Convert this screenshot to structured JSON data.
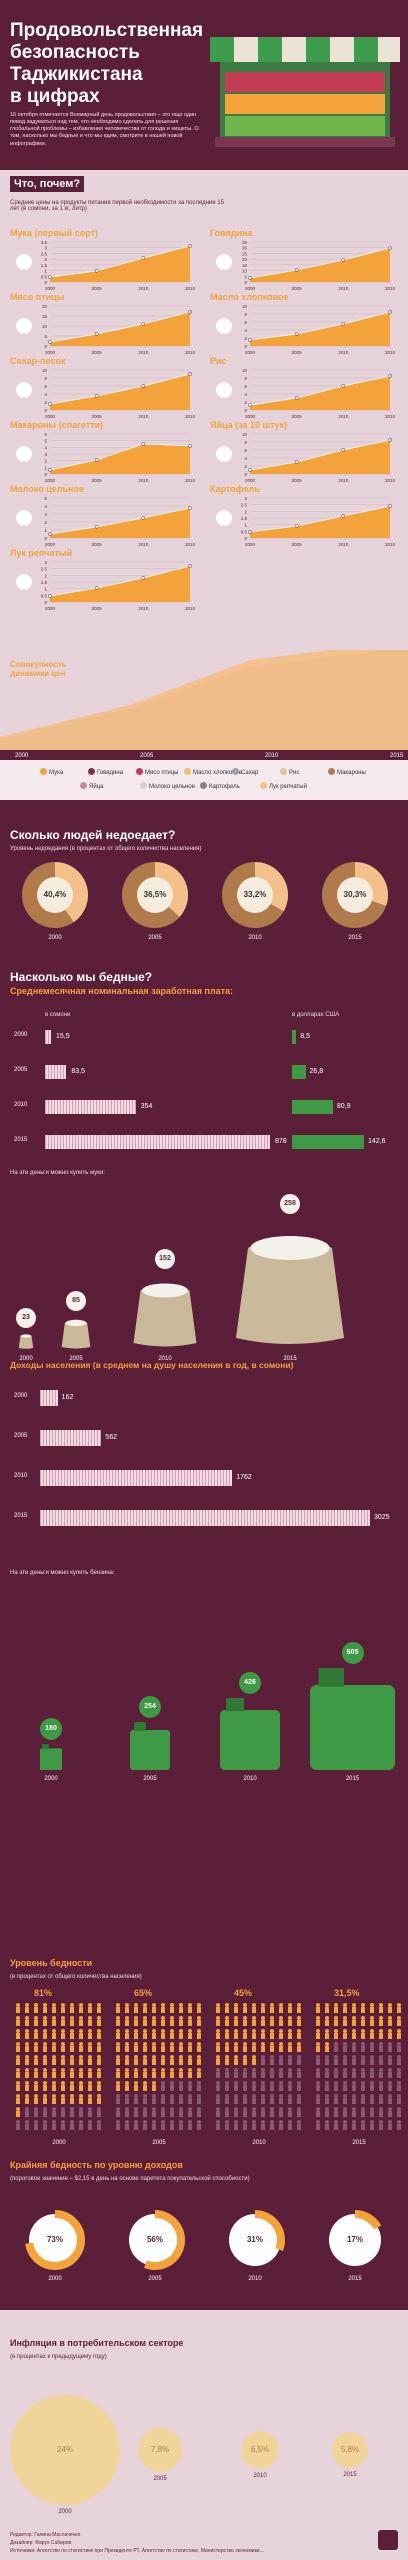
{
  "header": {
    "title_line1": "Продовольственная",
    "title_line2": "безопасность",
    "title_line3": "Таджикистана",
    "title_line4": "в цифрах",
    "intro": "16 октября отмечается Всемирный день продовольствия – это еще один повод задуматься над тем, что необходимо сделать для решения глобальной проблемы – избавления человечества от голода и нищеты. О том, насколько мы бедные и что мы едим, смотрите в нашей новой инфографике."
  },
  "prices": {
    "heading": "Что, почем?",
    "subheading": "Средние цены на продукты питания первой необходимости за последние 15 лет (в сомони, за 1 кг, литр)",
    "years": [
      "2000",
      "2005",
      "2010",
      "2015"
    ],
    "items": [
      {
        "name": "Мука (первый сорт)",
        "ticks": [
          "3.5",
          "3",
          "2.5",
          "2",
          "1.5",
          "1",
          "0.5",
          "0"
        ]
      },
      {
        "name": "Говядина",
        "ticks": [
          "35",
          "30",
          "25",
          "20",
          "15",
          "10",
          "5",
          "0"
        ]
      },
      {
        "name": "Мясо птицы",
        "ticks": [
          "20",
          "15",
          "10",
          "5",
          "0"
        ]
      },
      {
        "name": "Масло хлопковое",
        "ticks": [
          "10",
          "8",
          "6",
          "4",
          "2",
          "0"
        ]
      },
      {
        "name": "Сахар-песок",
        "ticks": [
          "10",
          "8",
          "6",
          "4",
          "2",
          "0"
        ]
      },
      {
        "name": "Рис",
        "ticks": [
          "10",
          "8",
          "6",
          "4",
          "2",
          "0"
        ]
      },
      {
        "name": "Макароны (спагетти)",
        "ticks": [
          "6",
          "5",
          "4",
          "3",
          "2",
          "1",
          "0"
        ]
      },
      {
        "name": "Яйца (за 10 штук)",
        "ticks": [
          "10",
          "8",
          "6",
          "4",
          "2",
          "0"
        ]
      },
      {
        "name": "Молоко цельное",
        "ticks": [
          "5",
          "4",
          "3",
          "2",
          "1",
          "0"
        ]
      },
      {
        "name": "Картофель",
        "ticks": [
          "3",
          "2.5",
          "2",
          "1.5",
          "1",
          "0.5",
          "0"
        ]
      },
      {
        "name": "Лук репчатый",
        "ticks": [
          "3",
          "2.5",
          "2",
          "1.5",
          "1",
          "0.5",
          "0"
        ]
      }
    ],
    "combined_label": "Совокупность динамики цен",
    "axis_years": [
      "2000",
      "2005",
      "2010",
      "2015"
    ],
    "legend": [
      "Мука",
      "Говядина",
      "Мясо птицы",
      "Масло хлопковое",
      "Сахар",
      "Рис",
      "Макароны",
      "Яйца",
      "Молоко цельное",
      "Картофель",
      "Лук репчатый"
    ],
    "colors": {
      "area": "#f4a23a",
      "line": "#ffffff"
    }
  },
  "hunger": {
    "heading": "Сколько людей недоедает?",
    "subheading": "Уровень недоедания (в процентах от общего количества населения)",
    "years": [
      "2000",
      "2005",
      "2010",
      "2015"
    ],
    "values": [
      "40,4%",
      "36,5%",
      "33,2%",
      "30,3%"
    ]
  },
  "poverty": {
    "heading": "Насколько мы бедные?",
    "wage_heading": "Среднемесячная номинальная заработная плата:",
    "col_somoni": "в сомони",
    "col_usd": "в долларах США",
    "years": [
      "2000",
      "2005",
      "2010",
      "2015"
    ],
    "somoni": [
      "15,5",
      "83,5",
      "354",
      "878"
    ],
    "usd": [
      "8,5",
      "26,8",
      "80,9",
      "142,6"
    ],
    "flour_note": "На эти деньги можно купить муки:",
    "flour": [
      "23",
      "85",
      "152",
      "258"
    ],
    "income_heading": "Доходы населения (в среднем на душу населения в год, в сомони)",
    "income": [
      "162",
      "562",
      "1762",
      "3025"
    ],
    "fuel_note": "На эти деньги можно купить бензина:",
    "fuel": [
      "180",
      "254",
      "426",
      "605"
    ],
    "unit_kg": "кг",
    "unit_l": "л"
  },
  "poverty_level": {
    "heading": "Уровень бедности",
    "subheading": "(в процентах от общего количества населения)",
    "values": [
      "81%",
      "65%",
      "45%",
      "31,5%"
    ],
    "years": [
      "2000",
      "2005",
      "2010",
      "2015"
    ]
  },
  "extreme": {
    "heading": "Крайняя бедность по уровню доходов",
    "subheading": "(пороговое значение – $2,15 в день на основе паритета покупательской способности)",
    "values": [
      "73%",
      "56%",
      "31%",
      "17%"
    ],
    "years": [
      "2000",
      "2005",
      "2010",
      "2015"
    ]
  },
  "inflation": {
    "heading": "Инфляция в потребительском секторе",
    "subheading": "(в процентах к предыдущему году)",
    "values": [
      "24%",
      "7,8%",
      "6,5%",
      "5,8%"
    ],
    "years": [
      "2000",
      "2005",
      "2010",
      "2015"
    ]
  },
  "footer": {
    "editor": "Редактор: Галина Маслаченко",
    "designer": "Дизайнер: Фарух Сабиров",
    "sources": "Источники: Агентство по статистике при Президенте РТ, Агентство по статистике, Министерство экономики..."
  },
  "chart_data": {
    "type": "bar",
    "title": "Среднемесячная номинальная заработная плата",
    "categories": [
      "2000",
      "2005",
      "2010",
      "2015"
    ],
    "series": [
      {
        "name": "в сомони",
        "values": [
          15.5,
          83.5,
          354,
          878
        ]
      },
      {
        "name": "в долларах США",
        "values": [
          8.5,
          26.8,
          80.9,
          142.6
        ]
      }
    ]
  }
}
